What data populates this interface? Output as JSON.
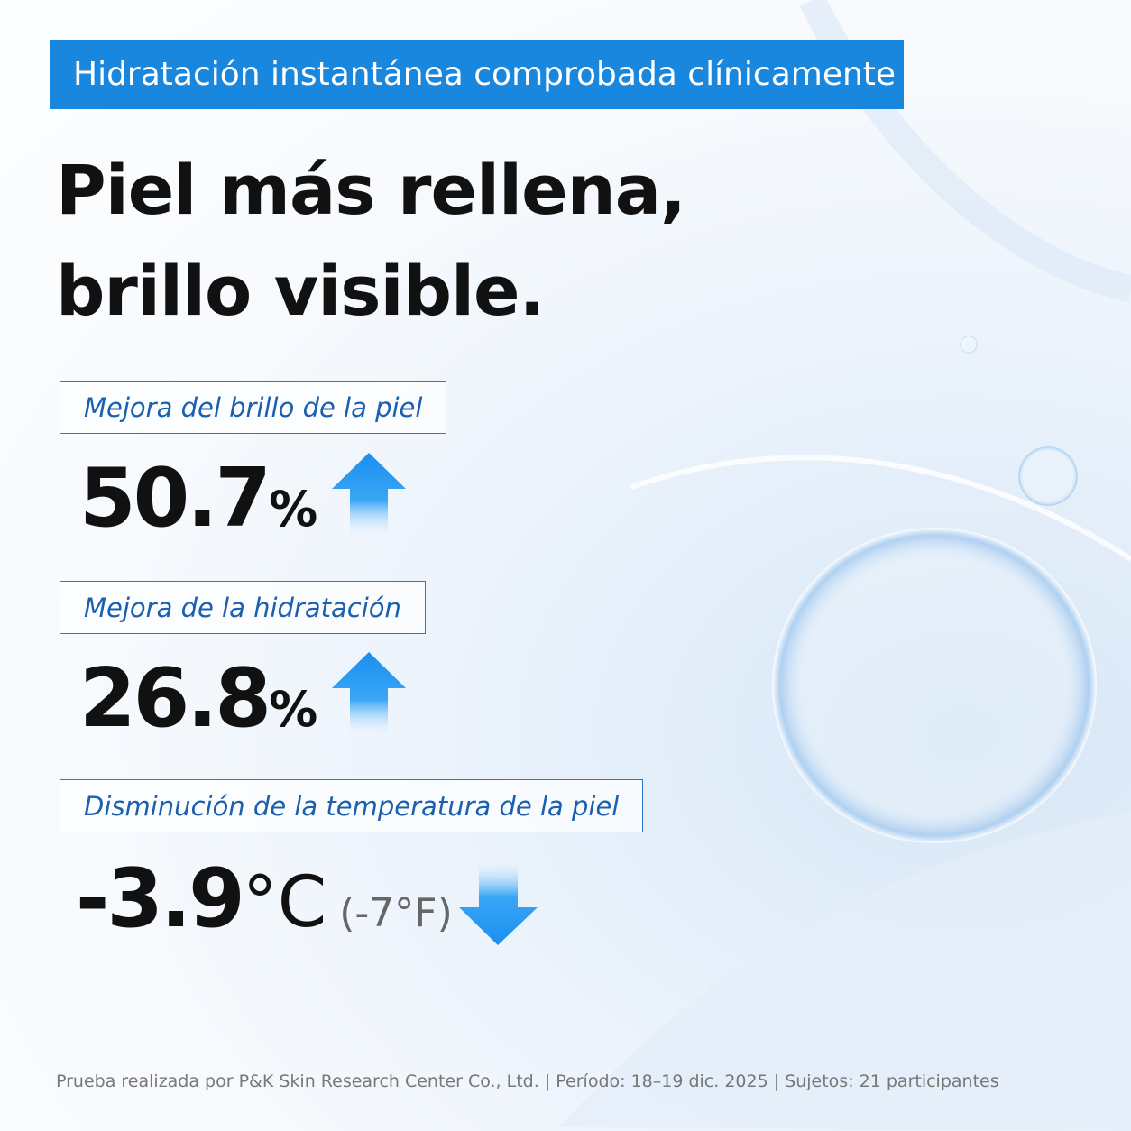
{
  "banner": {
    "text": "Hidratación instantánea comprobada clínicamente"
  },
  "headline": {
    "lines": [
      "Piel más rellena,",
      "brillo visible."
    ]
  },
  "stats": [
    {
      "label": "Mejora del brillo de la piel",
      "value": "50.7",
      "unit": "%"
    },
    {
      "label": "Mejora de la hidratación",
      "value": "26.8",
      "unit": "%"
    },
    {
      "label": "Disminución de la temperatura de la piel",
      "value": "-3.9",
      "unit": "°C",
      "secondary": "(-7°F)"
    }
  ],
  "footnote": "Prueba realizada por P&K Skin Research Center Co., Ltd. | Período: 18–19 dic. 2025 | Sujetos: 21 participantes"
}
